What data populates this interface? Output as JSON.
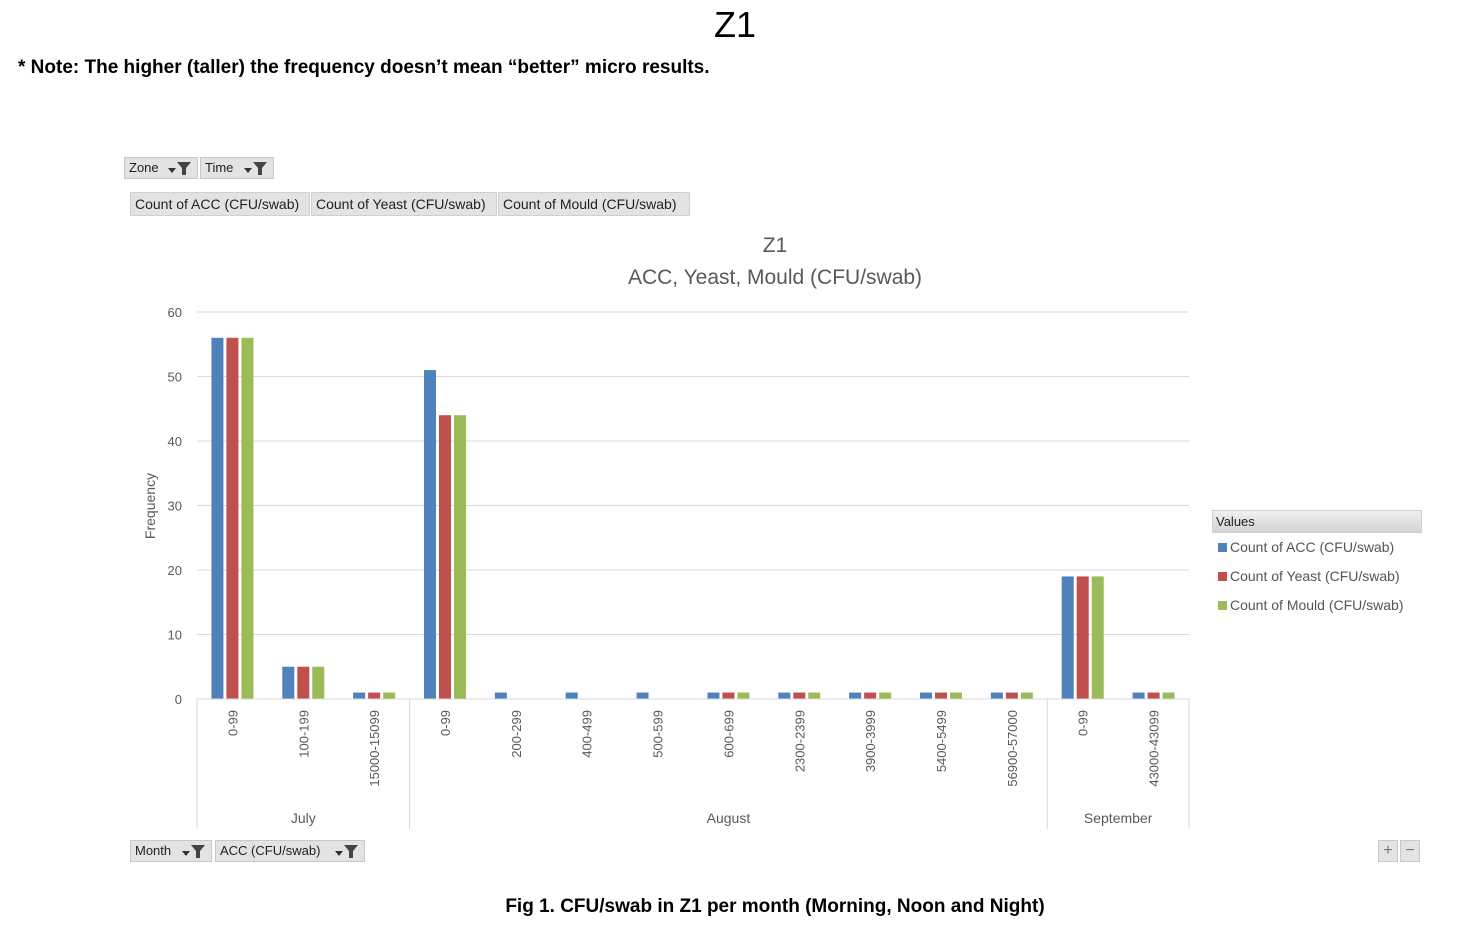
{
  "page_title": "Z1",
  "note": "* Note: The higher (taller) the frequency doesn’t mean “better” micro results.",
  "caption": "Fig 1. CFU/swab in Z1 per month (Morning, Noon and Night)",
  "filters": {
    "zone_label": "Zone",
    "time_label": "Time",
    "month_label": "Month",
    "acc_label": "ACC (CFU/swab)"
  },
  "value_fields": [
    "Count of ACC (CFU/swab)",
    "Count of Yeast (CFU/swab)",
    "Count of Mould (CFU/swab)"
  ],
  "zoom": {
    "plus": "+",
    "minus": "−"
  },
  "legend": {
    "header": "Values"
  },
  "colors": {
    "acc": "#4f81bd",
    "yeast": "#c0504d",
    "mould": "#9bbb59"
  },
  "chart_data": {
    "type": "bar",
    "title": "Z1",
    "subtitle": "ACC, Yeast, Mould (CFU/swab)",
    "xlabel": "",
    "ylabel": "Frequency",
    "ylim": [
      0,
      60
    ],
    "yticks": [
      0,
      10,
      20,
      30,
      40,
      50,
      60
    ],
    "grid": true,
    "legend_position": "right",
    "groups": [
      {
        "name": "July",
        "categories": [
          "0-99",
          "100-199",
          "15000-15099"
        ]
      },
      {
        "name": "August",
        "categories": [
          "0-99",
          "200-299",
          "400-499",
          "500-599",
          "600-699",
          "2300-2399",
          "3900-3999",
          "5400-5499",
          "56900-57000"
        ]
      },
      {
        "name": "September",
        "categories": [
          "0-99",
          "43000-43099"
        ]
      }
    ],
    "series": [
      {
        "name": "Count of ACC (CFU/swab)",
        "color": "#4f81bd",
        "values": [
          56,
          5,
          1,
          51,
          1,
          1,
          1,
          1,
          1,
          1,
          1,
          1,
          19,
          1
        ]
      },
      {
        "name": "Count of Yeast (CFU/swab)",
        "color": "#c0504d",
        "values": [
          56,
          5,
          1,
          44,
          0,
          0,
          0,
          1,
          1,
          1,
          1,
          1,
          19,
          1
        ]
      },
      {
        "name": "Count of Mould (CFU/swab)",
        "color": "#9bbb59",
        "values": [
          56,
          5,
          1,
          44,
          0,
          0,
          0,
          1,
          1,
          1,
          1,
          1,
          19,
          1
        ]
      }
    ]
  }
}
